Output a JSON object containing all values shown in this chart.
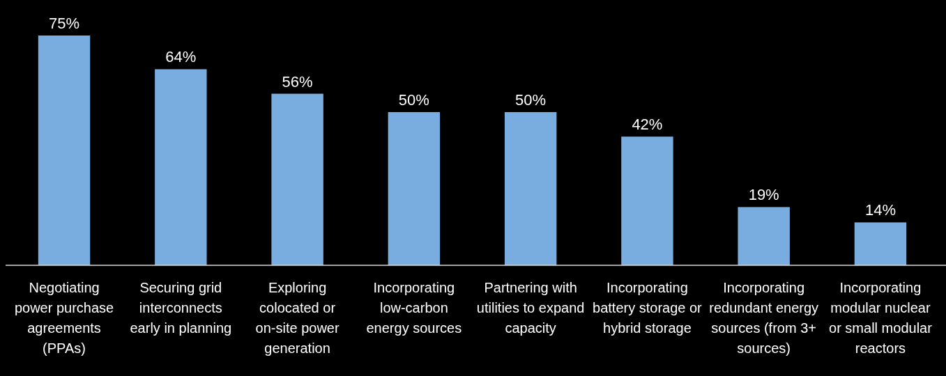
{
  "chart_data": {
    "type": "bar",
    "categories": [
      "Negotiating power purchase agreements (PPAs)",
      "Securing grid interconnects early in planning",
      "Exploring colocated or on-site power generation",
      "Incorporating low-carbon energy sources",
      "Partnering with utilities to expand capacity",
      "Incorporating battery storage or hybrid storage",
      "Incorporating redundant energy sources (from 3+ sources)",
      "Incorporating modular nuclear or small modular reactors"
    ],
    "values": [
      75,
      64,
      56,
      50,
      50,
      42,
      19,
      14
    ],
    "value_labels": [
      "75%",
      "64%",
      "56%",
      "50%",
      "50%",
      "42%",
      "19%",
      "14%"
    ],
    "color": "#7aaddf",
    "tick_labels": "x"
  }
}
